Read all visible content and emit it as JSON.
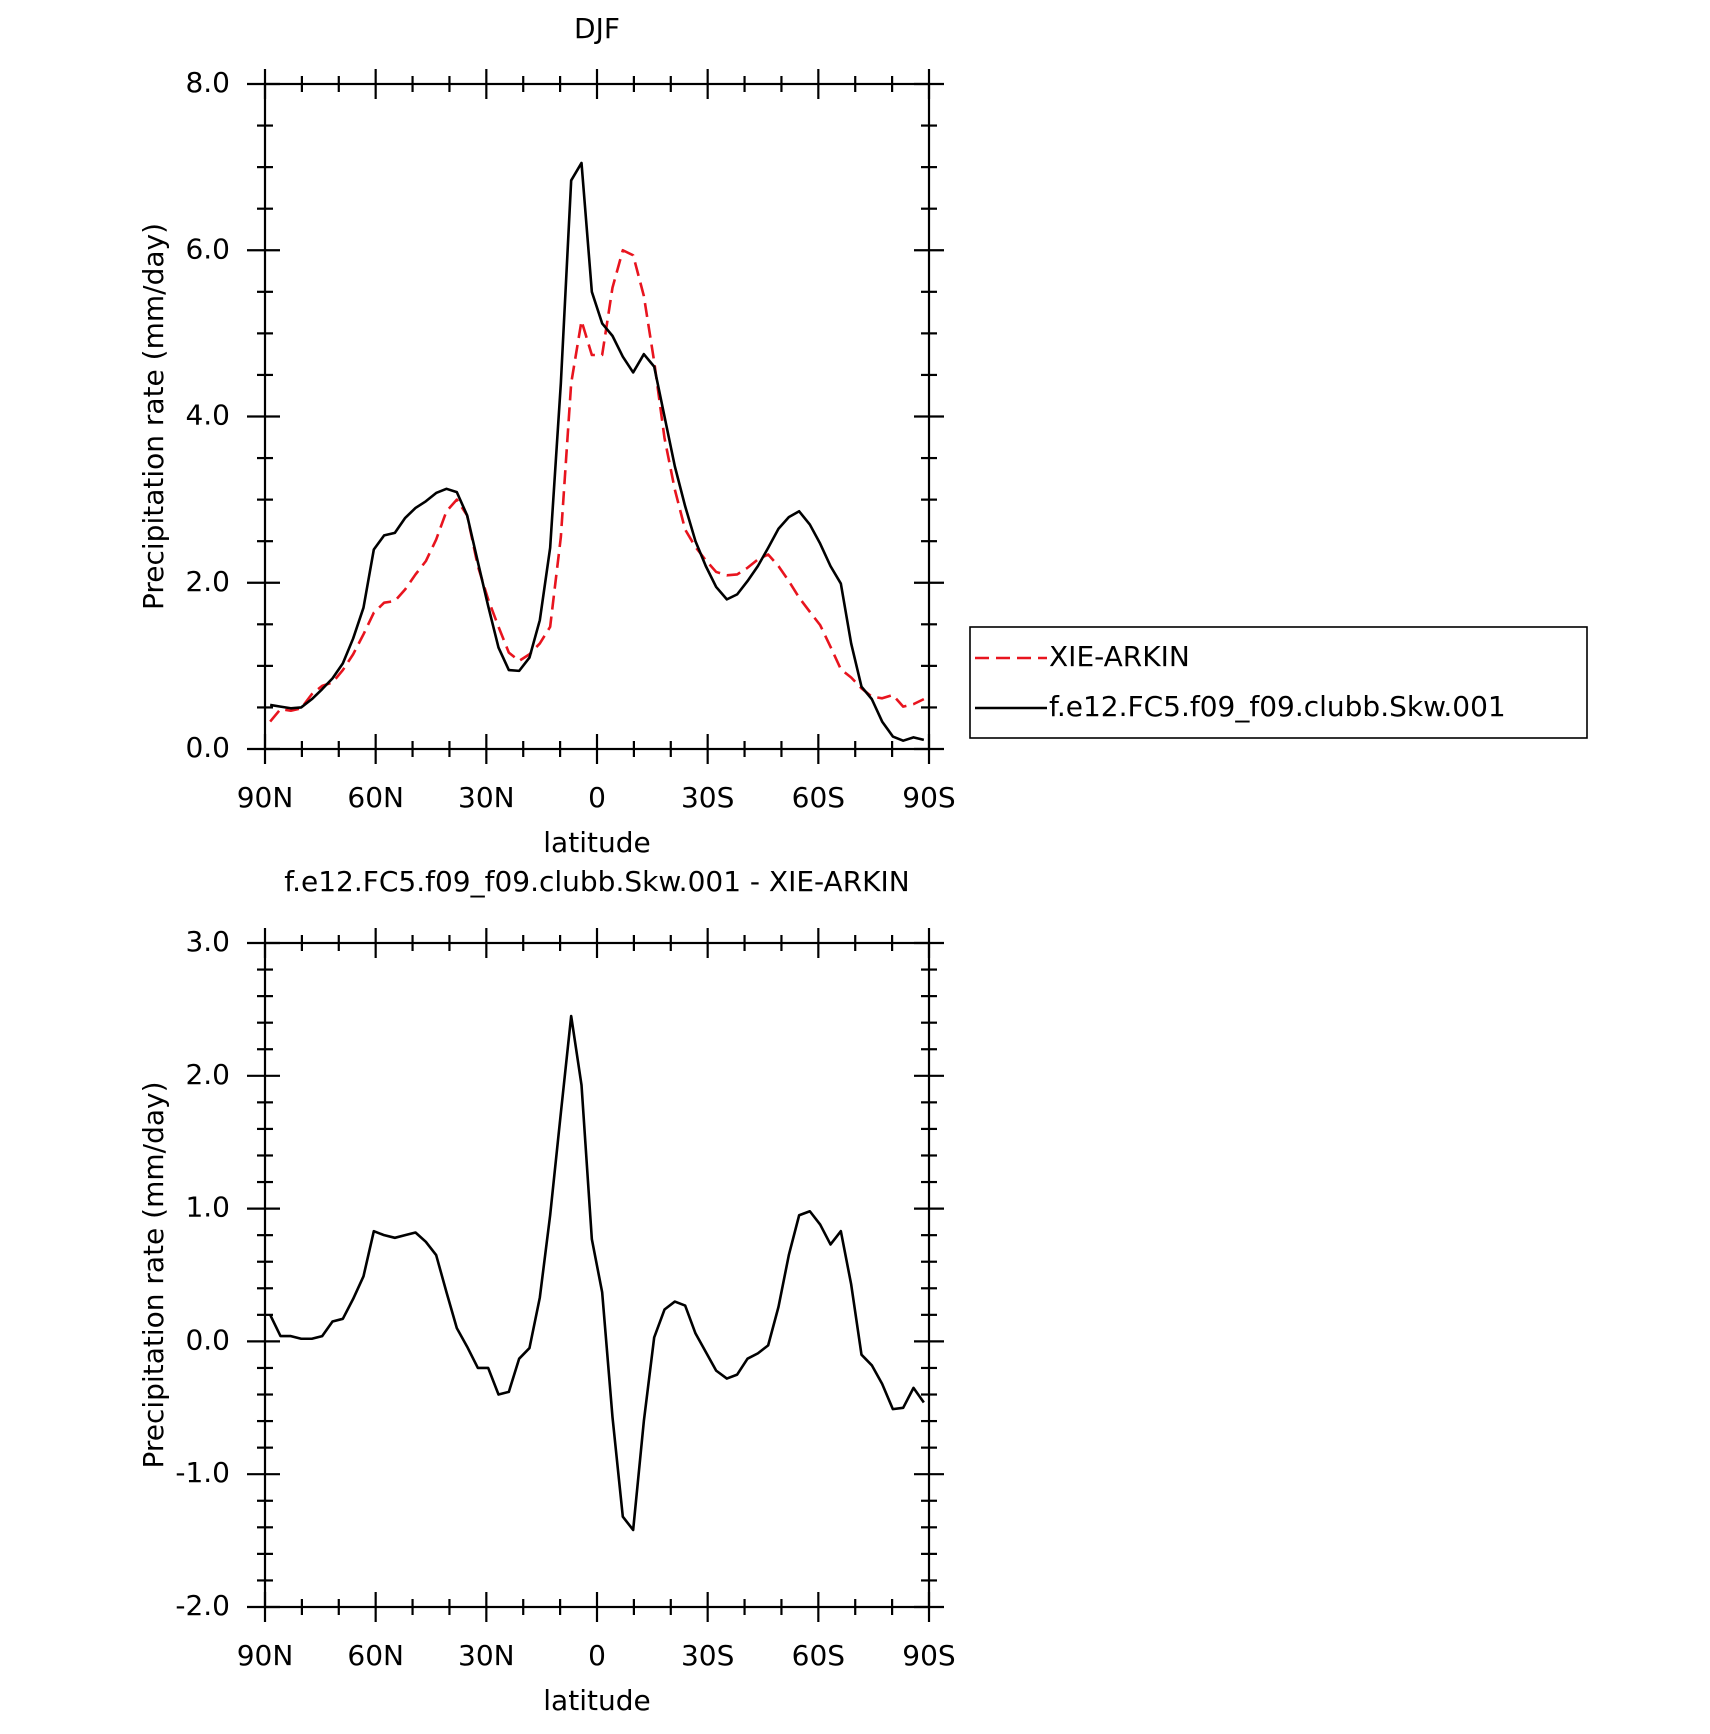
{
  "chart_data": [
    {
      "type": "line",
      "title": "DJF",
      "xlabel": "latitude",
      "ylabel": "Precipitation rate (mm/day)",
      "x": [
        88.6,
        85.8,
        83.0,
        80.2,
        77.3,
        74.5,
        71.7,
        68.9,
        66.1,
        63.3,
        60.5,
        57.7,
        54.8,
        52.0,
        49.2,
        46.4,
        43.6,
        40.8,
        38.0,
        35.2,
        32.3,
        29.5,
        26.7,
        23.9,
        21.1,
        18.3,
        15.5,
        12.7,
        9.8,
        7.0,
        4.2,
        1.4,
        -1.4,
        -4.2,
        -7.0,
        -9.8,
        -12.7,
        -15.5,
        -18.3,
        -21.1,
        -23.9,
        -26.7,
        -29.5,
        -32.3,
        -35.2,
        -38.0,
        -40.8,
        -43.6,
        -46.4,
        -49.2,
        -52.0,
        -54.8,
        -57.7,
        -60.5,
        -63.3,
        -66.1,
        -68.9,
        -71.7,
        -74.5,
        -77.3,
        -80.2,
        -83.0,
        -85.8,
        -88.6
      ],
      "series": [
        {
          "name": "XIE-ARKIN",
          "color": "#e8141e",
          "dash": true,
          "values": [
            0.33,
            0.48,
            0.46,
            0.49,
            0.66,
            0.76,
            0.8,
            0.95,
            1.14,
            1.38,
            1.64,
            1.76,
            1.78,
            1.92,
            2.1,
            2.26,
            2.52,
            2.86,
            3.0,
            2.81,
            2.2,
            1.8,
            1.47,
            1.16,
            1.06,
            1.14,
            1.27,
            1.47,
            2.55,
            4.4,
            5.15,
            4.74,
            4.74,
            5.55,
            6.0,
            5.94,
            5.45,
            4.66,
            3.74,
            3.12,
            2.64,
            2.43,
            2.27,
            2.13,
            2.09,
            2.1,
            2.18,
            2.28,
            2.34,
            2.2,
            2.02,
            1.82,
            1.65,
            1.49,
            1.23,
            0.96,
            0.86,
            0.73,
            0.63,
            0.61,
            0.65,
            0.51,
            0.54,
            0.6
          ]
        },
        {
          "name": "f.e12.FC5.f09_f09.clubb.Skw.001",
          "color": "#000000",
          "dash": false,
          "values": [
            0.53,
            0.51,
            0.49,
            0.5,
            0.6,
            0.72,
            0.85,
            1.03,
            1.33,
            1.7,
            2.4,
            2.57,
            2.6,
            2.78,
            2.9,
            2.98,
            3.08,
            3.13,
            3.09,
            2.81,
            2.25,
            1.72,
            1.22,
            0.95,
            0.94,
            1.1,
            1.55,
            2.42,
            4.4,
            6.84,
            7.05,
            5.5,
            5.12,
            4.97,
            4.72,
            4.53,
            4.75,
            4.6,
            4.0,
            3.4,
            2.92,
            2.5,
            2.2,
            1.95,
            1.8,
            1.86,
            2.02,
            2.2,
            2.42,
            2.65,
            2.79,
            2.86,
            2.7,
            2.47,
            2.2,
            1.99,
            1.27,
            0.75,
            0.6,
            0.33,
            0.15,
            0.1,
            0.14,
            0.11
          ]
        }
      ],
      "xlim": [
        90,
        -90
      ],
      "xticks": [
        {
          "value": 90,
          "label": "90N"
        },
        {
          "value": 60,
          "label": "60N"
        },
        {
          "value": 30,
          "label": "30N"
        },
        0,
        {
          "value": -30,
          "label": "30S"
        },
        {
          "value": -60,
          "label": "60S"
        },
        {
          "value": -90,
          "label": "90S"
        }
      ],
      "ylim": [
        0,
        8
      ],
      "yticks": [
        {
          "value": 0,
          "label": "0.0"
        },
        {
          "value": 2,
          "label": "2.0"
        },
        {
          "value": 4,
          "label": "4.0"
        },
        {
          "value": 6,
          "label": "6.0"
        },
        {
          "value": 8,
          "label": "8.0"
        }
      ],
      "legend": "right"
    },
    {
      "type": "line",
      "title": "f.e12.FC5.f09_f09.clubb.Skw.001 - XIE-ARKIN",
      "xlabel": "latitude",
      "ylabel": "Precipitation rate (mm/day)",
      "x": [
        88.6,
        85.8,
        83.0,
        80.2,
        77.3,
        74.5,
        71.7,
        68.9,
        66.1,
        63.3,
        60.5,
        57.7,
        54.8,
        52.0,
        49.2,
        46.4,
        43.6,
        40.8,
        38.0,
        35.2,
        32.3,
        29.5,
        26.7,
        23.9,
        21.1,
        18.3,
        15.5,
        12.7,
        9.8,
        7.0,
        4.2,
        1.4,
        -1.4,
        -4.2,
        -7.0,
        -9.8,
        -12.7,
        -15.5,
        -18.3,
        -21.1,
        -23.9,
        -26.7,
        -29.5,
        -32.3,
        -35.2,
        -38.0,
        -40.8,
        -43.6,
        -46.4,
        -49.2,
        -52.0,
        -54.8,
        -57.7,
        -60.5,
        -63.3,
        -66.1,
        -68.9,
        -71.7,
        -74.5,
        -77.3,
        -80.2,
        -83.0,
        -85.8,
        -88.6
      ],
      "series": [
        {
          "color": "#000000",
          "dash": false,
          "values": [
            0.2,
            0.04,
            0.04,
            0.02,
            0.02,
            0.04,
            0.15,
            0.17,
            0.32,
            0.49,
            0.83,
            0.8,
            0.78,
            0.8,
            0.82,
            0.75,
            0.65,
            0.37,
            0.1,
            -0.04,
            -0.2,
            -0.2,
            -0.4,
            -0.38,
            -0.13,
            -0.05,
            0.33,
            0.95,
            1.72,
            2.45,
            1.93,
            0.77,
            0.37,
            -0.57,
            -1.32,
            -1.42,
            -0.6,
            0.03,
            0.24,
            0.3,
            0.27,
            0.06,
            -0.08,
            -0.22,
            -0.28,
            -0.25,
            -0.13,
            -0.09,
            -0.03,
            0.26,
            0.65,
            0.95,
            0.98,
            0.88,
            0.73,
            0.83,
            0.43,
            -0.1,
            -0.18,
            -0.32,
            -0.51,
            -0.5,
            -0.35,
            -0.46
          ]
        }
      ],
      "xlim": [
        90,
        -90
      ],
      "xticks": [
        {
          "value": 90,
          "label": "90N"
        },
        {
          "value": 60,
          "label": "60N"
        },
        {
          "value": 30,
          "label": "30N"
        },
        0,
        {
          "value": -30,
          "label": "30S"
        },
        {
          "value": -60,
          "label": "60S"
        },
        {
          "value": -90,
          "label": "90S"
        }
      ],
      "ylim": [
        -2,
        3
      ],
      "yticks": [
        {
          "value": -2,
          "label": "-2.0"
        },
        {
          "value": -1,
          "label": "-1.0"
        },
        {
          "value": 0,
          "label": "0.0"
        },
        {
          "value": 1,
          "label": "1.0"
        },
        {
          "value": 2,
          "label": "2.0"
        },
        {
          "value": 3,
          "label": "3.0"
        }
      ]
    }
  ]
}
